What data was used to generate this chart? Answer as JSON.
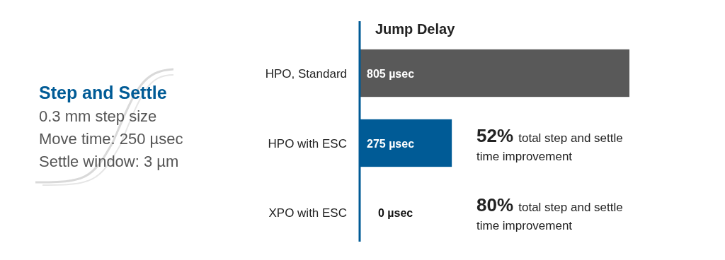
{
  "chart_data": {
    "type": "bar",
    "orientation": "horizontal",
    "title": "Jump Delay",
    "categories": [
      "HPO, Standard",
      "HPO with ESC",
      "XPO with ESC"
    ],
    "values": [
      805,
      275,
      0
    ],
    "colors": [
      "#595959",
      "#005b96",
      "#005b96"
    ],
    "value_labels": [
      "805 µsec",
      "275 µsec",
      "0 µsec"
    ],
    "annotations": [
      "Step and Settle",
      "0.3 mm step size",
      "Move time: 250 µsec",
      "Settle window: 3 µm",
      "52% total step and settle time improvement",
      "80% total step and settle time improvement"
    ]
  }
}
